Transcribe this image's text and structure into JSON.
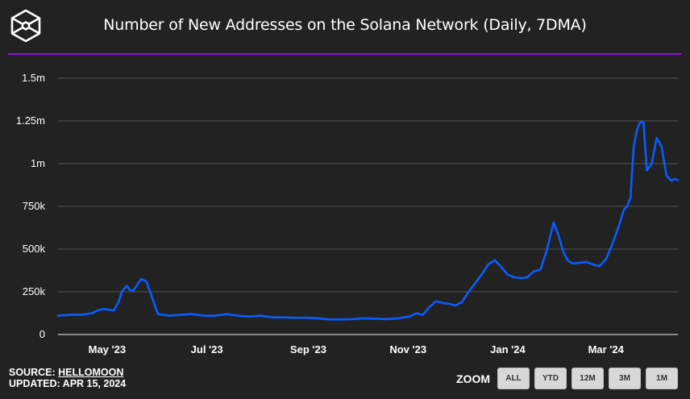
{
  "header": {
    "title": "Number of New Addresses on the Solana Network (Daily, 7DMA)",
    "logo": "hexagon-cube-logo"
  },
  "footer": {
    "source_label": "SOURCE:",
    "source_link": "HELLOMOON",
    "updated": "UPDATED: APR 15, 2024"
  },
  "zoom": {
    "label": "ZOOM",
    "buttons": [
      "ALL",
      "YTD",
      "12M",
      "3M",
      "1M"
    ]
  },
  "colors": {
    "background": "#222222",
    "line": "#0a5cff",
    "accent_rule": "#8a0fd1",
    "grid": "#4a4a4a",
    "button_bg": "#d8d8d8"
  },
  "chart_data": {
    "type": "line",
    "title": "Number of New Addresses on the Solana Network (Daily, 7DMA)",
    "xlabel": "",
    "ylabel": "",
    "ylim": [
      0,
      1500000
    ],
    "yticks": [
      0,
      250000,
      500000,
      750000,
      1000000,
      1250000,
      1500000
    ],
    "ytick_labels": [
      "0",
      "250k",
      "500k",
      "750k",
      "1m",
      "1.25m",
      "1.5m"
    ],
    "xtick_labels": [
      "May '23",
      "Jul '23",
      "Sep '23",
      "Nov '23",
      "Jan '24",
      "Mar '24"
    ],
    "grid": true,
    "legend": false,
    "series": [
      {
        "name": "New Addresses (7DMA)",
        "x": [
          "2023-04-01",
          "2023-04-08",
          "2023-04-15",
          "2023-04-22",
          "2023-04-25",
          "2023-04-29",
          "2023-05-02",
          "2023-05-05",
          "2023-05-08",
          "2023-05-10",
          "2023-05-13",
          "2023-05-15",
          "2023-05-17",
          "2023-05-20",
          "2023-05-22",
          "2023-05-25",
          "2023-05-28",
          "2023-06-01",
          "2023-06-08",
          "2023-06-15",
          "2023-06-22",
          "2023-06-29",
          "2023-07-06",
          "2023-07-13",
          "2023-07-20",
          "2023-07-27",
          "2023-08-03",
          "2023-08-10",
          "2023-08-17",
          "2023-08-24",
          "2023-08-31",
          "2023-09-07",
          "2023-09-14",
          "2023-09-21",
          "2023-09-28",
          "2023-10-05",
          "2023-10-12",
          "2023-10-19",
          "2023-10-26",
          "2023-11-02",
          "2023-11-06",
          "2023-11-10",
          "2023-11-14",
          "2023-11-18",
          "2023-11-22",
          "2023-11-26",
          "2023-11-30",
          "2023-12-04",
          "2023-12-08",
          "2023-12-12",
          "2023-12-16",
          "2023-12-20",
          "2023-12-24",
          "2023-12-28",
          "2024-01-01",
          "2024-01-05",
          "2024-01-09",
          "2024-01-13",
          "2024-01-17",
          "2024-01-21",
          "2024-01-25",
          "2024-01-29",
          "2024-02-01",
          "2024-02-04",
          "2024-02-07",
          "2024-02-10",
          "2024-02-14",
          "2024-02-18",
          "2024-02-22",
          "2024-02-26",
          "2024-03-01",
          "2024-03-05",
          "2024-03-09",
          "2024-03-12",
          "2024-03-14",
          "2024-03-16",
          "2024-03-18",
          "2024-03-20",
          "2024-03-22",
          "2024-03-24",
          "2024-03-26",
          "2024-03-29",
          "2024-04-01",
          "2024-04-04",
          "2024-04-07",
          "2024-04-10",
          "2024-04-12",
          "2024-04-14"
        ],
        "values": [
          110000,
          115000,
          115000,
          125000,
          140000,
          150000,
          145000,
          140000,
          190000,
          250000,
          285000,
          260000,
          255000,
          300000,
          325000,
          310000,
          230000,
          120000,
          110000,
          115000,
          120000,
          110000,
          110000,
          120000,
          110000,
          105000,
          110000,
          100000,
          100000,
          98000,
          98000,
          95000,
          88000,
          88000,
          90000,
          95000,
          93000,
          90000,
          95000,
          105000,
          125000,
          115000,
          160000,
          195000,
          185000,
          180000,
          170000,
          190000,
          250000,
          300000,
          350000,
          410000,
          435000,
          395000,
          350000,
          335000,
          330000,
          335000,
          370000,
          380000,
          500000,
          655000,
          580000,
          480000,
          430000,
          415000,
          420000,
          425000,
          410000,
          400000,
          440000,
          530000,
          640000,
          730000,
          750000,
          800000,
          1100000,
          1200000,
          1245000,
          1240000,
          960000,
          1000000,
          1150000,
          1100000,
          930000,
          900000,
          910000,
          905000
        ]
      }
    ]
  }
}
